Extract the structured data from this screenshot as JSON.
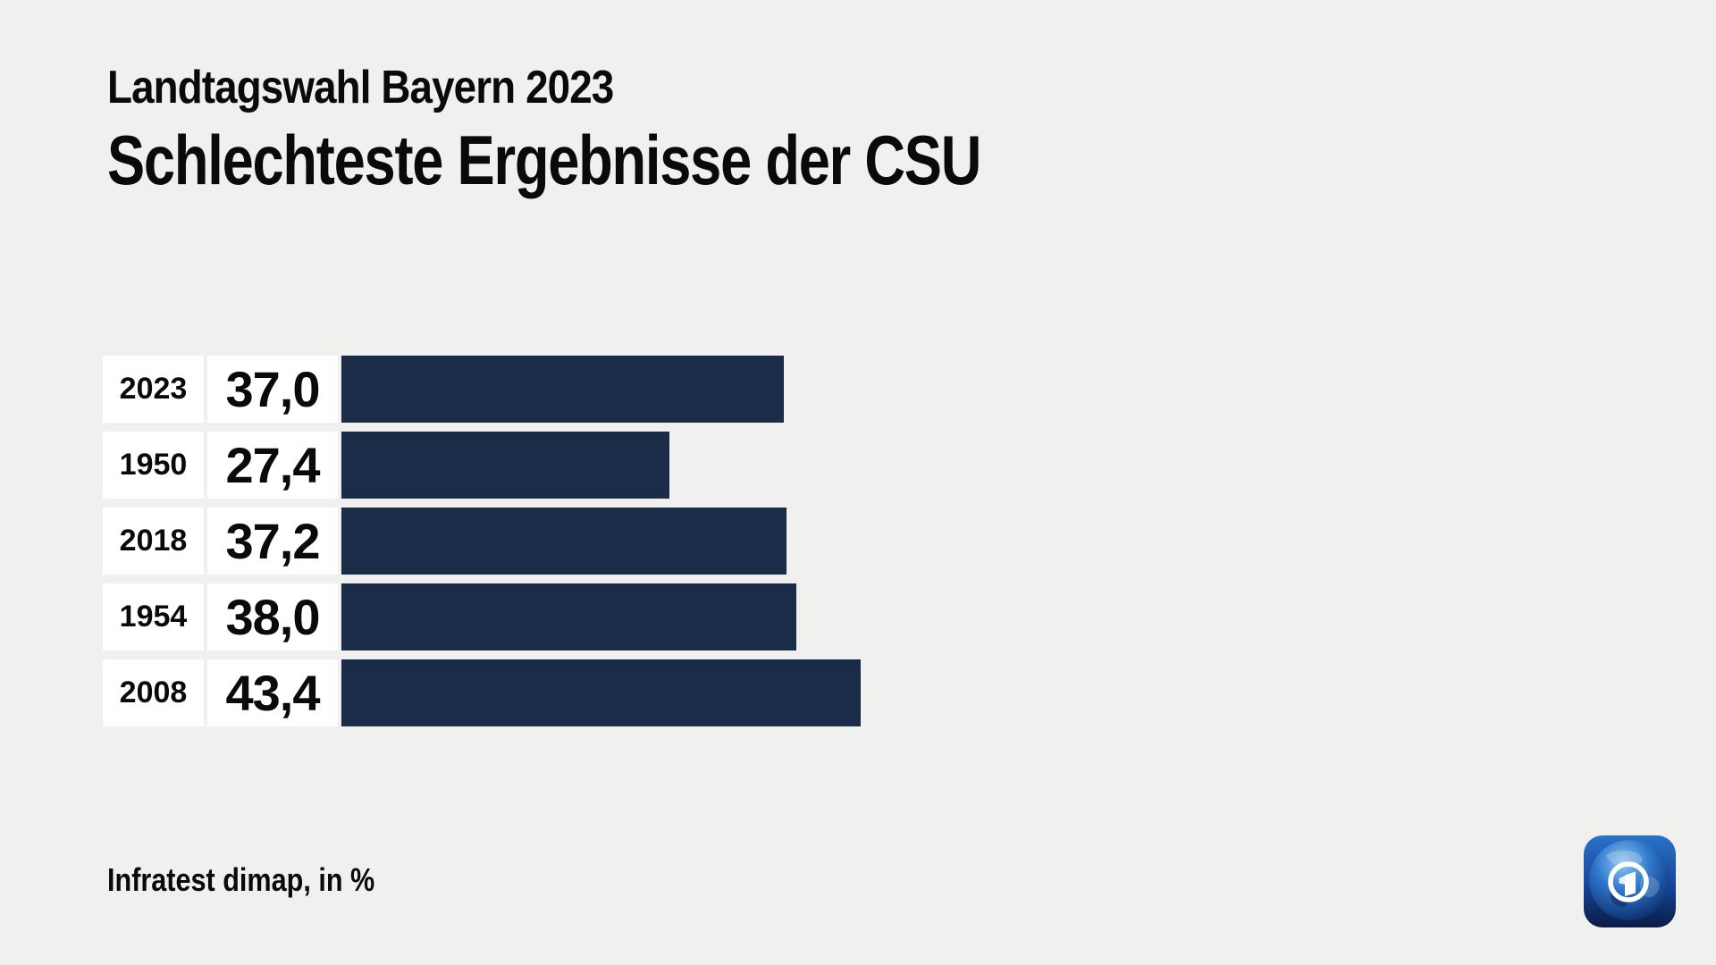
{
  "header": {
    "kicker": "Landtagswahl Bayern 2023",
    "title": "Schlechteste Ergebnisse der CSU"
  },
  "chart_data": {
    "type": "bar",
    "orientation": "horizontal",
    "title": "Schlechteste Ergebnisse der CSU",
    "subtitle": "Landtagswahl Bayern 2023",
    "categories": [
      "2023",
      "1950",
      "2018",
      "1954",
      "2008"
    ],
    "values": [
      37.0,
      27.4,
      37.2,
      38.0,
      43.4
    ],
    "value_labels": [
      "37,0",
      "27,4",
      "37,2",
      "38,0",
      "43,4"
    ],
    "unit": "%",
    "xlim": [
      0,
      45
    ],
    "grid": false,
    "legend": false,
    "bar_color": "#1b2c49",
    "background_color": "#f0f0ef",
    "label_box_color": "#ffffff"
  },
  "footer": {
    "source": "Infratest dimap, in %"
  },
  "logo": {
    "name": "ARD tagesschau"
  }
}
